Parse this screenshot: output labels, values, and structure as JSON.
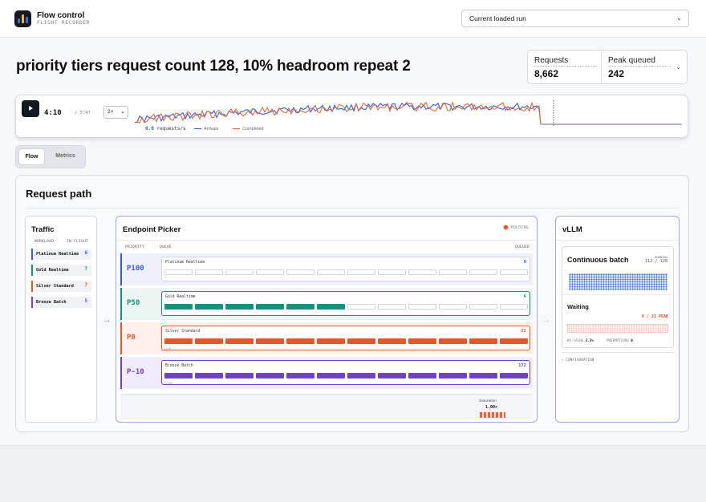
{
  "header": {
    "app_title": "Flow control",
    "app_subtitle": "FLIGHT RECORDER",
    "run_select_value": "Current loaded run"
  },
  "run": {
    "title": "priority tiers request count 128, 10% headroom repeat 2",
    "stats": [
      {
        "label": "Requests",
        "value": "8,662"
      },
      {
        "label": "Peak queued",
        "value": "242"
      }
    ]
  },
  "player": {
    "time": "4:10",
    "total": "/ 5:47",
    "speed": "2×",
    "rate_value": "0.0",
    "rate_unit": "requests/s",
    "legend": [
      {
        "name": "Arrivals",
        "color": "#2f5fd8"
      },
      {
        "name": "Completed",
        "color": "#e8663e"
      }
    ],
    "progress": 0.74
  },
  "tabs": [
    {
      "label": "Flow",
      "active": true
    },
    {
      "label": "Metrics",
      "active": false
    }
  ],
  "request_path": {
    "title": "Request path",
    "traffic": {
      "title": "Traffic",
      "col_workload": "WORKLOAD",
      "col_inflight": "IN FLIGHT",
      "rows": [
        {
          "name": "Platinum Realtime",
          "count": "6",
          "color": "#3b5bdb"
        },
        {
          "name": "Gold Realtime",
          "count": "7",
          "color": "#16907a"
        },
        {
          "name": "Silver Standard",
          "count": "7",
          "color": "#e0582c"
        },
        {
          "name": "Bronze Batch",
          "count": "5",
          "color": "#6f3fd4"
        }
      ]
    },
    "picker": {
      "title": "Endpoint Picker",
      "status": "HOLDING",
      "col_priority": "PRIORITY",
      "col_queue": "QUEUE",
      "col_queued": "QUEUED",
      "tiers": [
        {
          "priority": "P100",
          "label": "Platinum Realtime",
          "count": "0",
          "filled": 0,
          "sub": "",
          "color": "#3b5bdb",
          "bg": "#eef1fc",
          "count_color": "#3b5bdb"
        },
        {
          "priority": "P50",
          "label": "Gold Realtime",
          "count": "6",
          "filled": 6,
          "sub": "",
          "color": "#16907a",
          "bg": "#ebf6f3",
          "count_color": "#16907a"
        },
        {
          "priority": "P0",
          "label": "Silver Standard",
          "count": "22",
          "filled": 12,
          "sub": "+10",
          "color": "#e0582c",
          "bg": "#fdf0ea",
          "count_color": "#e0582c"
        },
        {
          "priority": "P-10",
          "label": "Bronze Batch",
          "count": "172",
          "filled": 12,
          "sub": "+160",
          "color": "#6f3fd4",
          "bg": "#f1ecfb",
          "count_color": "#6f3fd4"
        }
      ],
      "saturation_label": "Saturation",
      "saturation_value": "1.00×"
    },
    "vllm": {
      "title": "vLLM",
      "batch_title": "Continuous batch",
      "running_label": "RUNNING",
      "running_value": "112 / 128",
      "waiting_title": "Waiting",
      "waiting_value": "0 / 21 PEAK",
      "kv_label": "KV CACHE",
      "kv_value": "3.3%",
      "preemptions_label": "PREEMPTIONS",
      "preemptions_value": "0",
      "config_label": "▸ CONFIGURATION"
    }
  }
}
